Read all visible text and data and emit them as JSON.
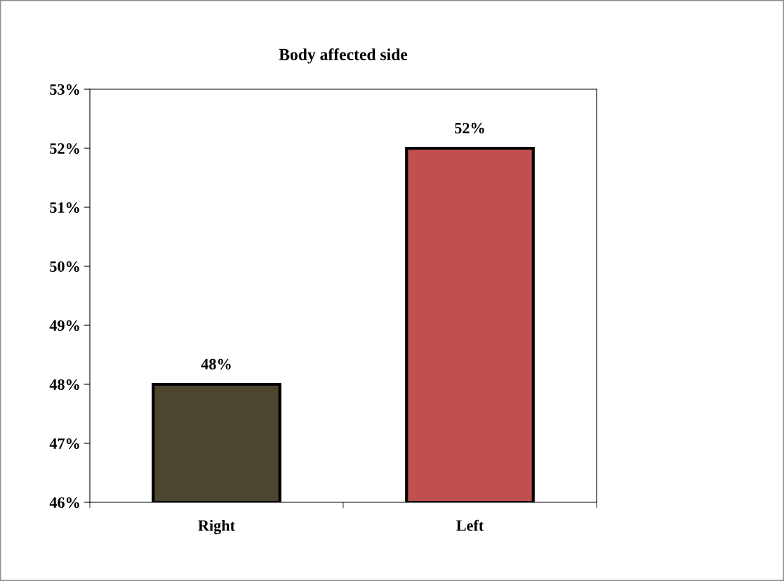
{
  "chart_data": {
    "type": "bar",
    "title": "Body affected side",
    "categories": [
      "Right",
      "Left"
    ],
    "values": [
      48,
      52
    ],
    "colors": [
      "#4b462d",
      "#c0504d"
    ],
    "value_labels": [
      "48%",
      "52%"
    ],
    "ylim": [
      46,
      53
    ],
    "yticks": [
      {
        "value": 46,
        "label": "46%"
      },
      {
        "value": 47,
        "label": "47%"
      },
      {
        "value": 48,
        "label": "48%"
      },
      {
        "value": 49,
        "label": "49%"
      },
      {
        "value": 50,
        "label": "50%"
      },
      {
        "value": 51,
        "label": "51%"
      },
      {
        "value": 52,
        "label": "52%"
      },
      {
        "value": 53,
        "label": "53%"
      }
    ],
    "grid": false,
    "legend": false
  }
}
